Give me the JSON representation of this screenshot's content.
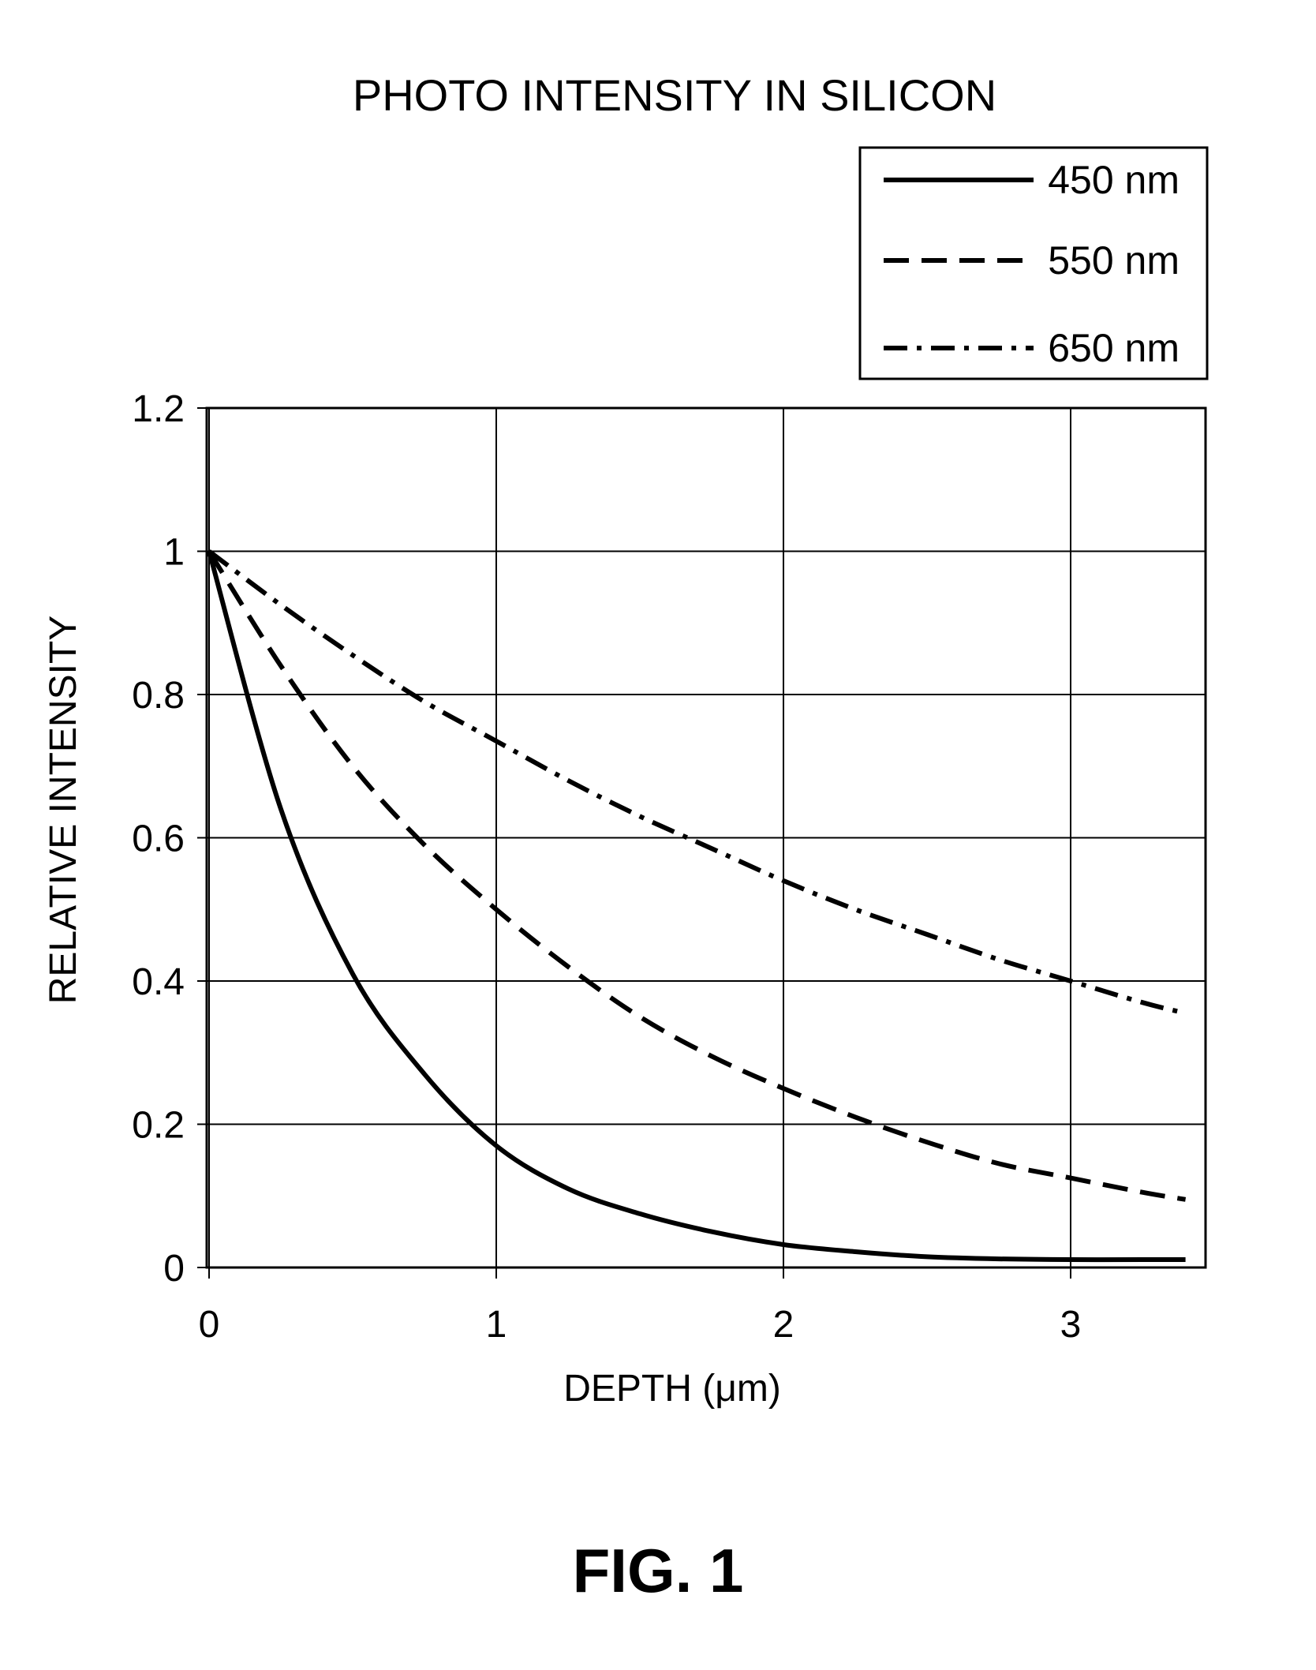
{
  "figure_label": "FIG. 1",
  "chart_data": {
    "type": "line",
    "title": "PHOTO INTENSITY IN SILICON",
    "xlabel": "DEPTH (μm)",
    "ylabel": "RELATIVE INTENSITY",
    "xlim": [
      0,
      3.5
    ],
    "ylim": [
      0,
      1.2
    ],
    "x_ticks": [
      "0",
      "1",
      "2",
      "3"
    ],
    "y_ticks": [
      "0",
      "0.2",
      "0.4",
      "0.6",
      "0.8",
      "1",
      "1.2"
    ],
    "grid": true,
    "legend_position": "top-right",
    "x": [
      0,
      0.25,
      0.5,
      0.75,
      1.0,
      1.25,
      1.5,
      1.75,
      2.0,
      2.25,
      2.5,
      2.75,
      3.0,
      3.25,
      3.4
    ],
    "series": [
      {
        "name": "450 nm",
        "style": "solid",
        "values": [
          1.0,
          0.64,
          0.41,
          0.27,
          0.17,
          0.11,
          0.075,
          0.05,
          0.032,
          0.022,
          0.015,
          0.012,
          0.011,
          0.011,
          0.011
        ]
      },
      {
        "name": "550 nm",
        "style": "dashed",
        "values": [
          1.0,
          0.84,
          0.7,
          0.59,
          0.5,
          0.42,
          0.35,
          0.295,
          0.25,
          0.21,
          0.175,
          0.145,
          0.125,
          0.105,
          0.095
        ]
      },
      {
        "name": "650 nm",
        "style": "dashdot",
        "values": [
          1.0,
          0.925,
          0.855,
          0.79,
          0.735,
          0.68,
          0.63,
          0.585,
          0.54,
          0.5,
          0.465,
          0.43,
          0.4,
          0.37,
          0.355
        ]
      }
    ]
  }
}
